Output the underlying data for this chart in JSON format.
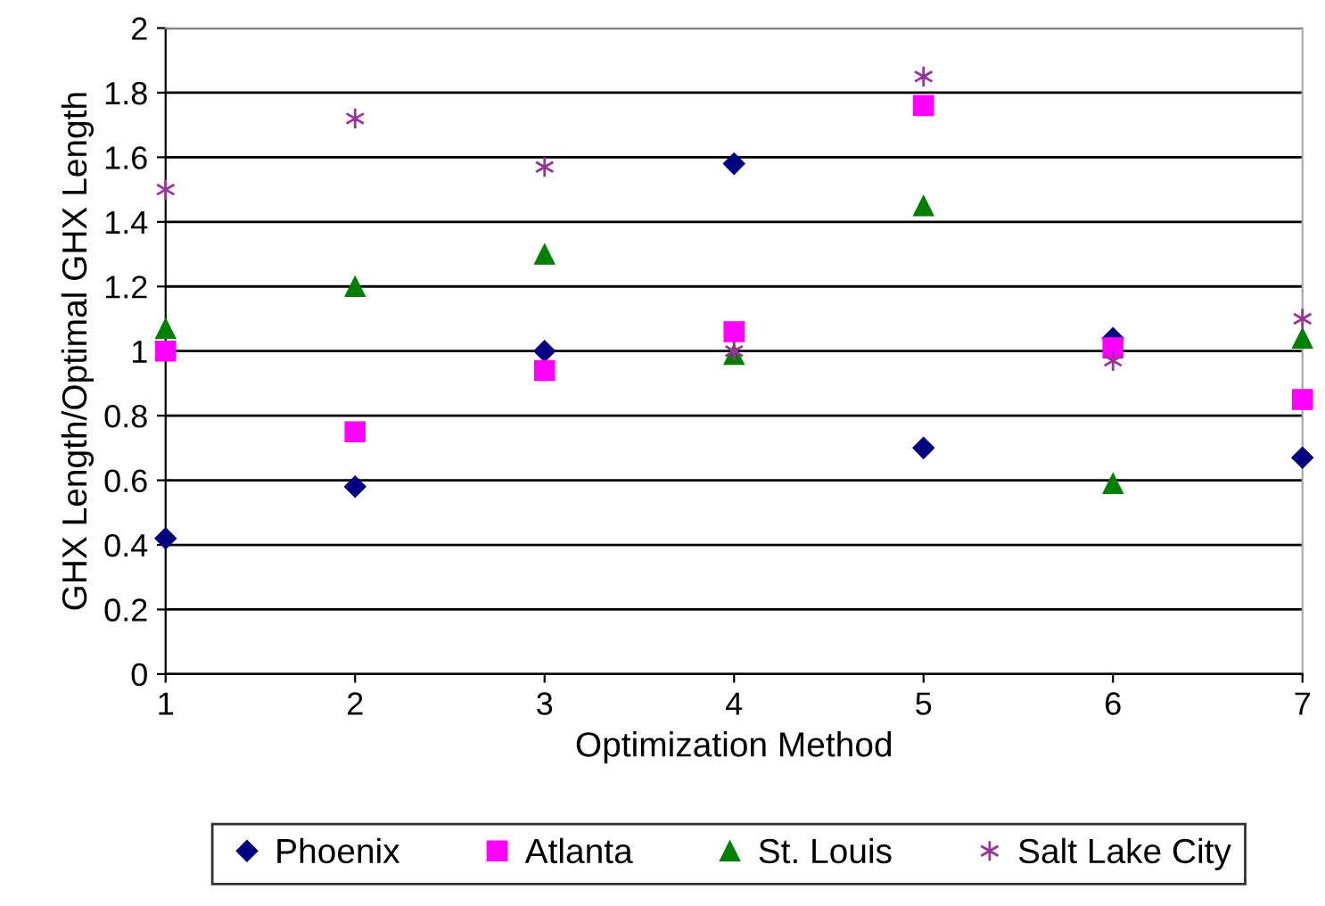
{
  "chart_data": {
    "type": "scatter",
    "xlabel": "Optimization Method",
    "ylabel": "GHX Length/Optimal GHX Length",
    "x": [
      1,
      2,
      3,
      4,
      5,
      6,
      7
    ],
    "series": [
      {
        "name": "Phoenix",
        "color": "#000080",
        "marker": "diamond",
        "values": [
          0.42,
          0.58,
          1.0,
          1.58,
          0.7,
          1.04,
          0.67
        ]
      },
      {
        "name": "Atlanta",
        "color": "#ff00ff",
        "marker": "square",
        "values": [
          1.0,
          0.75,
          0.94,
          1.06,
          1.76,
          1.01,
          0.85
        ]
      },
      {
        "name": "St. Louis",
        "color": "#008000",
        "marker": "triangle",
        "values": [
          1.07,
          1.2,
          1.3,
          0.99,
          1.45,
          0.59,
          1.04
        ]
      },
      {
        "name": "Salt Lake City",
        "color": "#993399",
        "marker": "cross",
        "values": [
          1.5,
          1.72,
          1.57,
          1.0,
          1.85,
          0.97,
          1.1
        ]
      }
    ],
    "xlim": [
      1,
      7
    ],
    "xticks": [
      1,
      2,
      3,
      4,
      5,
      6,
      7
    ],
    "ylim": [
      0,
      2
    ],
    "yticks": [
      0,
      0.2,
      0.4,
      0.6,
      0.8,
      1,
      1.2,
      1.4,
      1.6,
      1.8,
      2
    ],
    "grid": "y",
    "legend": "bottom"
  }
}
